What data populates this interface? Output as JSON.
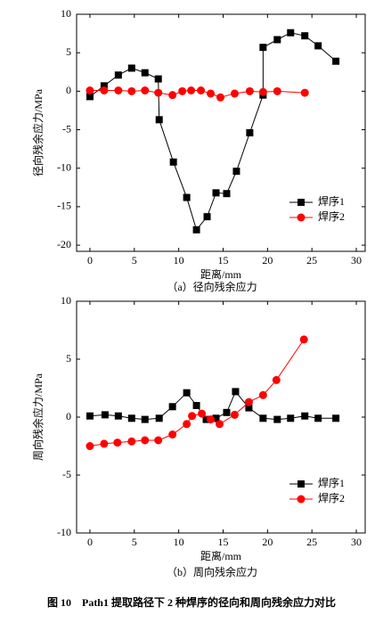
{
  "chart_data": [
    {
      "type": "line",
      "caption": "（a）径向残余应力",
      "xlabel": "距离/mm",
      "ylabel": "径向残余应力/MPa",
      "xlim": [
        -1.5,
        31
      ],
      "xticks": [
        0,
        5,
        10,
        15,
        20,
        25,
        30
      ],
      "ylim": [
        -20.8,
        10
      ],
      "yticks": [
        -20,
        -15,
        -10,
        -5,
        0,
        5,
        10
      ],
      "legend": "lower right",
      "series": [
        {
          "name": "焊序1",
          "color": "#000000",
          "marker": "square",
          "x": [
            0,
            1.6,
            3.2,
            4.7,
            6.2,
            7.7,
            7.8,
            9.4,
            10.9,
            12.0,
            13.2,
            14.2,
            15.4,
            16.5,
            18.0,
            19.5,
            19.5,
            21.1,
            22.6,
            24.2,
            25.7,
            27.7
          ],
          "values": [
            -0.7,
            0.7,
            2.1,
            3.0,
            2.4,
            1.6,
            -3.7,
            -9.2,
            -13.8,
            -18.0,
            -16.3,
            -13.2,
            -13.3,
            -10.4,
            -5.4,
            -0.5,
            5.7,
            6.7,
            7.6,
            7.2,
            5.9,
            3.9
          ]
        },
        {
          "name": "焊序2",
          "color": "#ff0000",
          "marker": "circle",
          "x": [
            0,
            1.6,
            3.2,
            4.7,
            6.2,
            7.7,
            9.3,
            10.4,
            11.4,
            12.5,
            13.6,
            14.7,
            16.3,
            18.0,
            19.5,
            21.1,
            24.2
          ],
          "values": [
            0.1,
            0.1,
            0.1,
            0.0,
            0.1,
            -0.2,
            -0.5,
            0.0,
            0.1,
            0.1,
            -0.3,
            -0.8,
            -0.3,
            0.0,
            -0.1,
            0.0,
            -0.2
          ]
        }
      ]
    },
    {
      "type": "line",
      "caption": "（b）周向残余应力",
      "xlabel": "距离/mm",
      "ylabel": "周向残余应力/MPa",
      "xlim": [
        -1.5,
        31
      ],
      "xticks": [
        0,
        5,
        10,
        15,
        20,
        25,
        30
      ],
      "ylim": [
        -10,
        10
      ],
      "yticks": [
        -10,
        -5,
        0,
        5,
        10
      ],
      "legend": "lower right",
      "series": [
        {
          "name": "焊序1",
          "color": "#000000",
          "marker": "square",
          "x": [
            0,
            1.7,
            3.2,
            4.7,
            6.2,
            7.8,
            9.3,
            10.9,
            12.0,
            13.1,
            14.2,
            15.4,
            16.4,
            17.9,
            19.5,
            21.1,
            22.6,
            24.2,
            25.7,
            27.7
          ],
          "values": [
            0.1,
            0.2,
            0.1,
            -0.1,
            -0.2,
            -0.1,
            0.9,
            2.1,
            1.0,
            -0.2,
            -0.1,
            0.4,
            2.2,
            0.8,
            -0.1,
            -0.2,
            -0.1,
            0.1,
            -0.1,
            -0.1
          ]
        },
        {
          "name": "焊序2",
          "color": "#ff0000",
          "marker": "circle",
          "x": [
            0,
            1.6,
            3.1,
            4.7,
            6.2,
            7.7,
            9.3,
            10.9,
            11.5,
            12.6,
            13.6,
            14.6,
            16.3,
            17.9,
            19.5,
            21.0,
            24.1
          ],
          "values": [
            -2.5,
            -2.3,
            -2.2,
            -2.1,
            -2.0,
            -2.0,
            -1.5,
            -0.6,
            0.1,
            0.3,
            -0.2,
            -0.6,
            0.2,
            1.3,
            1.9,
            3.2,
            6.7
          ]
        }
      ]
    }
  ],
  "caption": "图 10　Path1 提取路径下 2 种焊序的径向和周向残余应力对比"
}
